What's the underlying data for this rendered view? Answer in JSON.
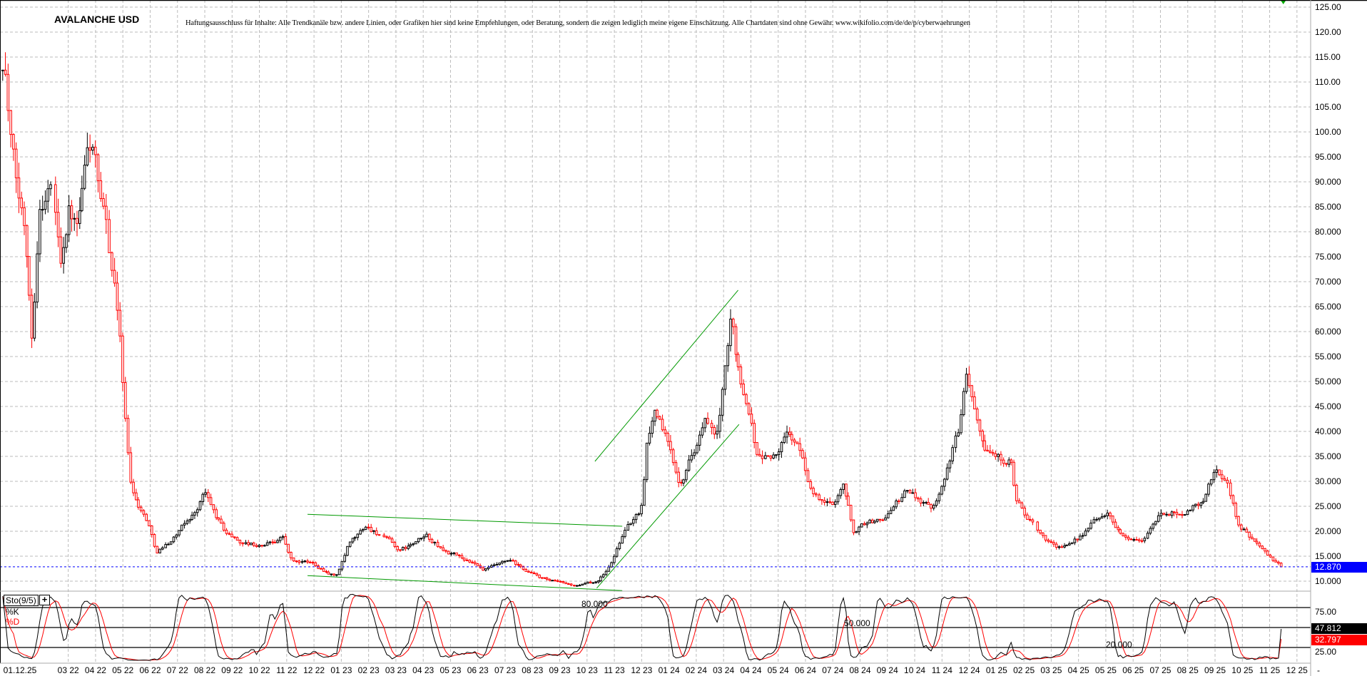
{
  "header": {
    "title": "AVALANCHE USD",
    "disclaimer": "Haftungsausschluss für Inhalte: Alle Trendkanäle bzw. andere Linien, oder Grafiken hier sind keine Empfehlungen, oder Beratung, sondern die zeigen lediglich meine eigene Einschätzung. Alle Chartdaten sind ohne Gewähr. www.wikifolio.com/de/de/p/cyberwaehrungen"
  },
  "colors": {
    "up": "#000000",
    "down": "#ff0000",
    "trendline": "#009900",
    "last_price_tag": "#0000ff",
    "k_line": "#000000",
    "d_line": "#ff0000",
    "grid": "#bbbbbb"
  },
  "chart_data": [
    {
      "type": "candlestick",
      "title": "AVALANCHE USD",
      "ylim": [
        7,
        126
      ],
      "y_ticks": [
        125,
        120,
        115,
        110,
        105,
        100,
        95,
        90,
        85,
        80,
        75,
        70,
        65,
        60,
        55,
        50,
        45,
        40,
        35,
        30,
        25,
        20,
        15,
        10
      ],
      "grid": true,
      "last_price": 12.87,
      "last_price_label": "12.870",
      "approx_closes": [
        [
          "2022-01-06",
          115
        ],
        [
          "2022-01-12",
          100
        ],
        [
          "2022-01-20",
          88
        ],
        [
          "2022-01-30",
          80
        ],
        [
          "2022-02-06",
          60
        ],
        [
          "2022-02-14",
          85
        ],
        [
          "2022-02-28",
          90
        ],
        [
          "2022-03-08",
          75
        ],
        [
          "2022-03-17",
          85
        ],
        [
          "2022-03-27",
          80
        ],
        [
          "2022-04-06",
          95
        ],
        [
          "2022-04-14",
          98
        ],
        [
          "2022-04-21",
          85
        ],
        [
          "2022-04-28",
          80
        ],
        [
          "2022-05-05",
          72
        ],
        [
          "2022-05-13",
          60
        ],
        [
          "2022-05-20",
          40
        ],
        [
          "2022-05-25",
          30
        ],
        [
          "2022-06-04",
          25
        ],
        [
          "2022-06-14",
          22
        ],
        [
          "2022-06-23",
          16
        ],
        [
          "2022-07-08",
          18
        ],
        [
          "2022-07-27",
          22
        ],
        [
          "2022-08-06",
          24
        ],
        [
          "2022-08-16",
          28
        ],
        [
          "2022-08-26",
          24
        ],
        [
          "2022-09-08",
          20
        ],
        [
          "2022-09-24",
          18
        ],
        [
          "2022-10-18",
          17
        ],
        [
          "2022-11-12",
          19
        ],
        [
          "2022-11-22",
          14
        ],
        [
          "2022-12-16",
          13.5
        ],
        [
          "2023-01-10",
          11
        ],
        [
          "2023-01-24",
          17
        ],
        [
          "2023-02-13",
          21
        ],
        [
          "2023-03-02",
          19
        ],
        [
          "2023-03-21",
          16
        ],
        [
          "2023-04-20",
          19
        ],
        [
          "2023-05-09",
          16
        ],
        [
          "2023-06-08",
          14
        ],
        [
          "2023-06-22",
          12
        ],
        [
          "2023-07-21",
          14
        ],
        [
          "2023-08-10",
          12
        ],
        [
          "2023-09-04",
          10
        ],
        [
          "2023-10-08",
          9
        ],
        [
          "2023-10-27",
          10
        ],
        [
          "2023-11-11",
          13
        ],
        [
          "2023-11-26",
          20
        ],
        [
          "2023-12-15",
          24
        ],
        [
          "2023-12-22",
          38
        ],
        [
          "2024-01-01",
          45
        ],
        [
          "2024-01-14",
          38
        ],
        [
          "2024-01-28",
          30
        ],
        [
          "2024-02-12",
          36
        ],
        [
          "2024-02-26",
          42
        ],
        [
          "2024-03-08",
          38
        ],
        [
          "2024-03-20",
          55
        ],
        [
          "2024-03-25",
          62
        ],
        [
          "2024-04-05",
          50
        ],
        [
          "2024-04-14",
          45
        ],
        [
          "2024-04-24",
          35
        ],
        [
          "2024-05-13",
          35
        ],
        [
          "2024-05-28",
          40
        ],
        [
          "2024-06-12",
          35
        ],
        [
          "2024-06-26",
          27
        ],
        [
          "2024-07-15",
          25
        ],
        [
          "2024-07-28",
          30
        ],
        [
          "2024-08-09",
          20
        ],
        [
          "2024-08-24",
          22
        ],
        [
          "2024-09-08",
          22
        ],
        [
          "2024-10-07",
          28
        ],
        [
          "2024-11-06",
          25
        ],
        [
          "2024-11-20",
          32
        ],
        [
          "2024-12-04",
          40
        ],
        [
          "2024-12-12",
          53
        ],
        [
          "2024-12-24",
          45
        ],
        [
          "2025-01-03",
          38
        ],
        [
          "2025-01-18",
          35
        ],
        [
          "2025-02-02",
          34
        ],
        [
          "2025-02-07",
          26
        ],
        [
          "2025-03-01",
          20
        ],
        [
          "2025-03-20",
          17
        ],
        [
          "2025-04-09",
          17
        ],
        [
          "2025-04-28",
          21
        ],
        [
          "2025-05-17",
          24
        ],
        [
          "2025-06-06",
          19
        ],
        [
          "2025-06-25",
          18
        ],
        [
          "2025-07-14",
          23
        ],
        [
          "2025-08-13",
          24
        ],
        [
          "2025-09-02",
          26
        ],
        [
          "2025-09-17",
          33
        ],
        [
          "2025-10-01",
          29
        ],
        [
          "2025-10-11",
          22
        ],
        [
          "2025-10-30",
          18
        ],
        [
          "2025-11-19",
          14
        ],
        [
          "2025-11-27",
          13.5
        ],
        [
          "2025-12-01",
          12.87
        ]
      ],
      "trendlines": [
        {
          "from": [
            "2022-12-09",
            23.4
          ],
          "to": [
            "2023-11-25",
            21.0
          ]
        },
        {
          "from": [
            "2022-12-09",
            11.1
          ],
          "to": [
            "2023-11-25",
            8.1
          ]
        },
        {
          "from": [
            "2023-10-25",
            34.0
          ],
          "to": [
            "2024-04-02",
            68.3
          ]
        },
        {
          "from": [
            "2023-10-27",
            8.6
          ],
          "to": [
            "2024-04-03",
            41.4
          ]
        }
      ],
      "x_cursor_label": "01.12.25",
      "x_labels": [
        "03 22",
        "04 22",
        "05 22",
        "06 22",
        "07 22",
        "08 22",
        "09 22",
        "10 22",
        "11 22",
        "12 22",
        "01 23",
        "02 23",
        "03 23",
        "04 23",
        "05 23",
        "06 23",
        "07 23",
        "08 23",
        "09 23",
        "10 23",
        "11 23",
        "12 23",
        "01 24",
        "02 24",
        "03 24",
        "04 24",
        "05 24",
        "06 24",
        "07 24",
        "08 24",
        "09 24",
        "10 24",
        "11 24",
        "12 24",
        "01 25",
        "02 25",
        "03 25",
        "04 25",
        "05 25",
        "06 25",
        "07 25",
        "08 25",
        "09 25",
        "10 25",
        "11 25",
        "12 25"
      ],
      "x_end_label": "-"
    },
    {
      "type": "line",
      "indicator": "Sto(9/5)",
      "series": [
        {
          "name": "%K",
          "last": "47.812"
        },
        {
          "name": "%D",
          "last": "32.797"
        }
      ],
      "levels": [
        {
          "value": 80,
          "label": "80.000"
        },
        {
          "value": 50,
          "label": "50.000"
        },
        {
          "value": 20,
          "label": "20.000"
        }
      ],
      "y_ticks": [
        {
          "value": 75,
          "label": "75.00"
        },
        {
          "value": 25,
          "label": "25.00"
        }
      ],
      "ylim": [
        0,
        100
      ]
    }
  ]
}
